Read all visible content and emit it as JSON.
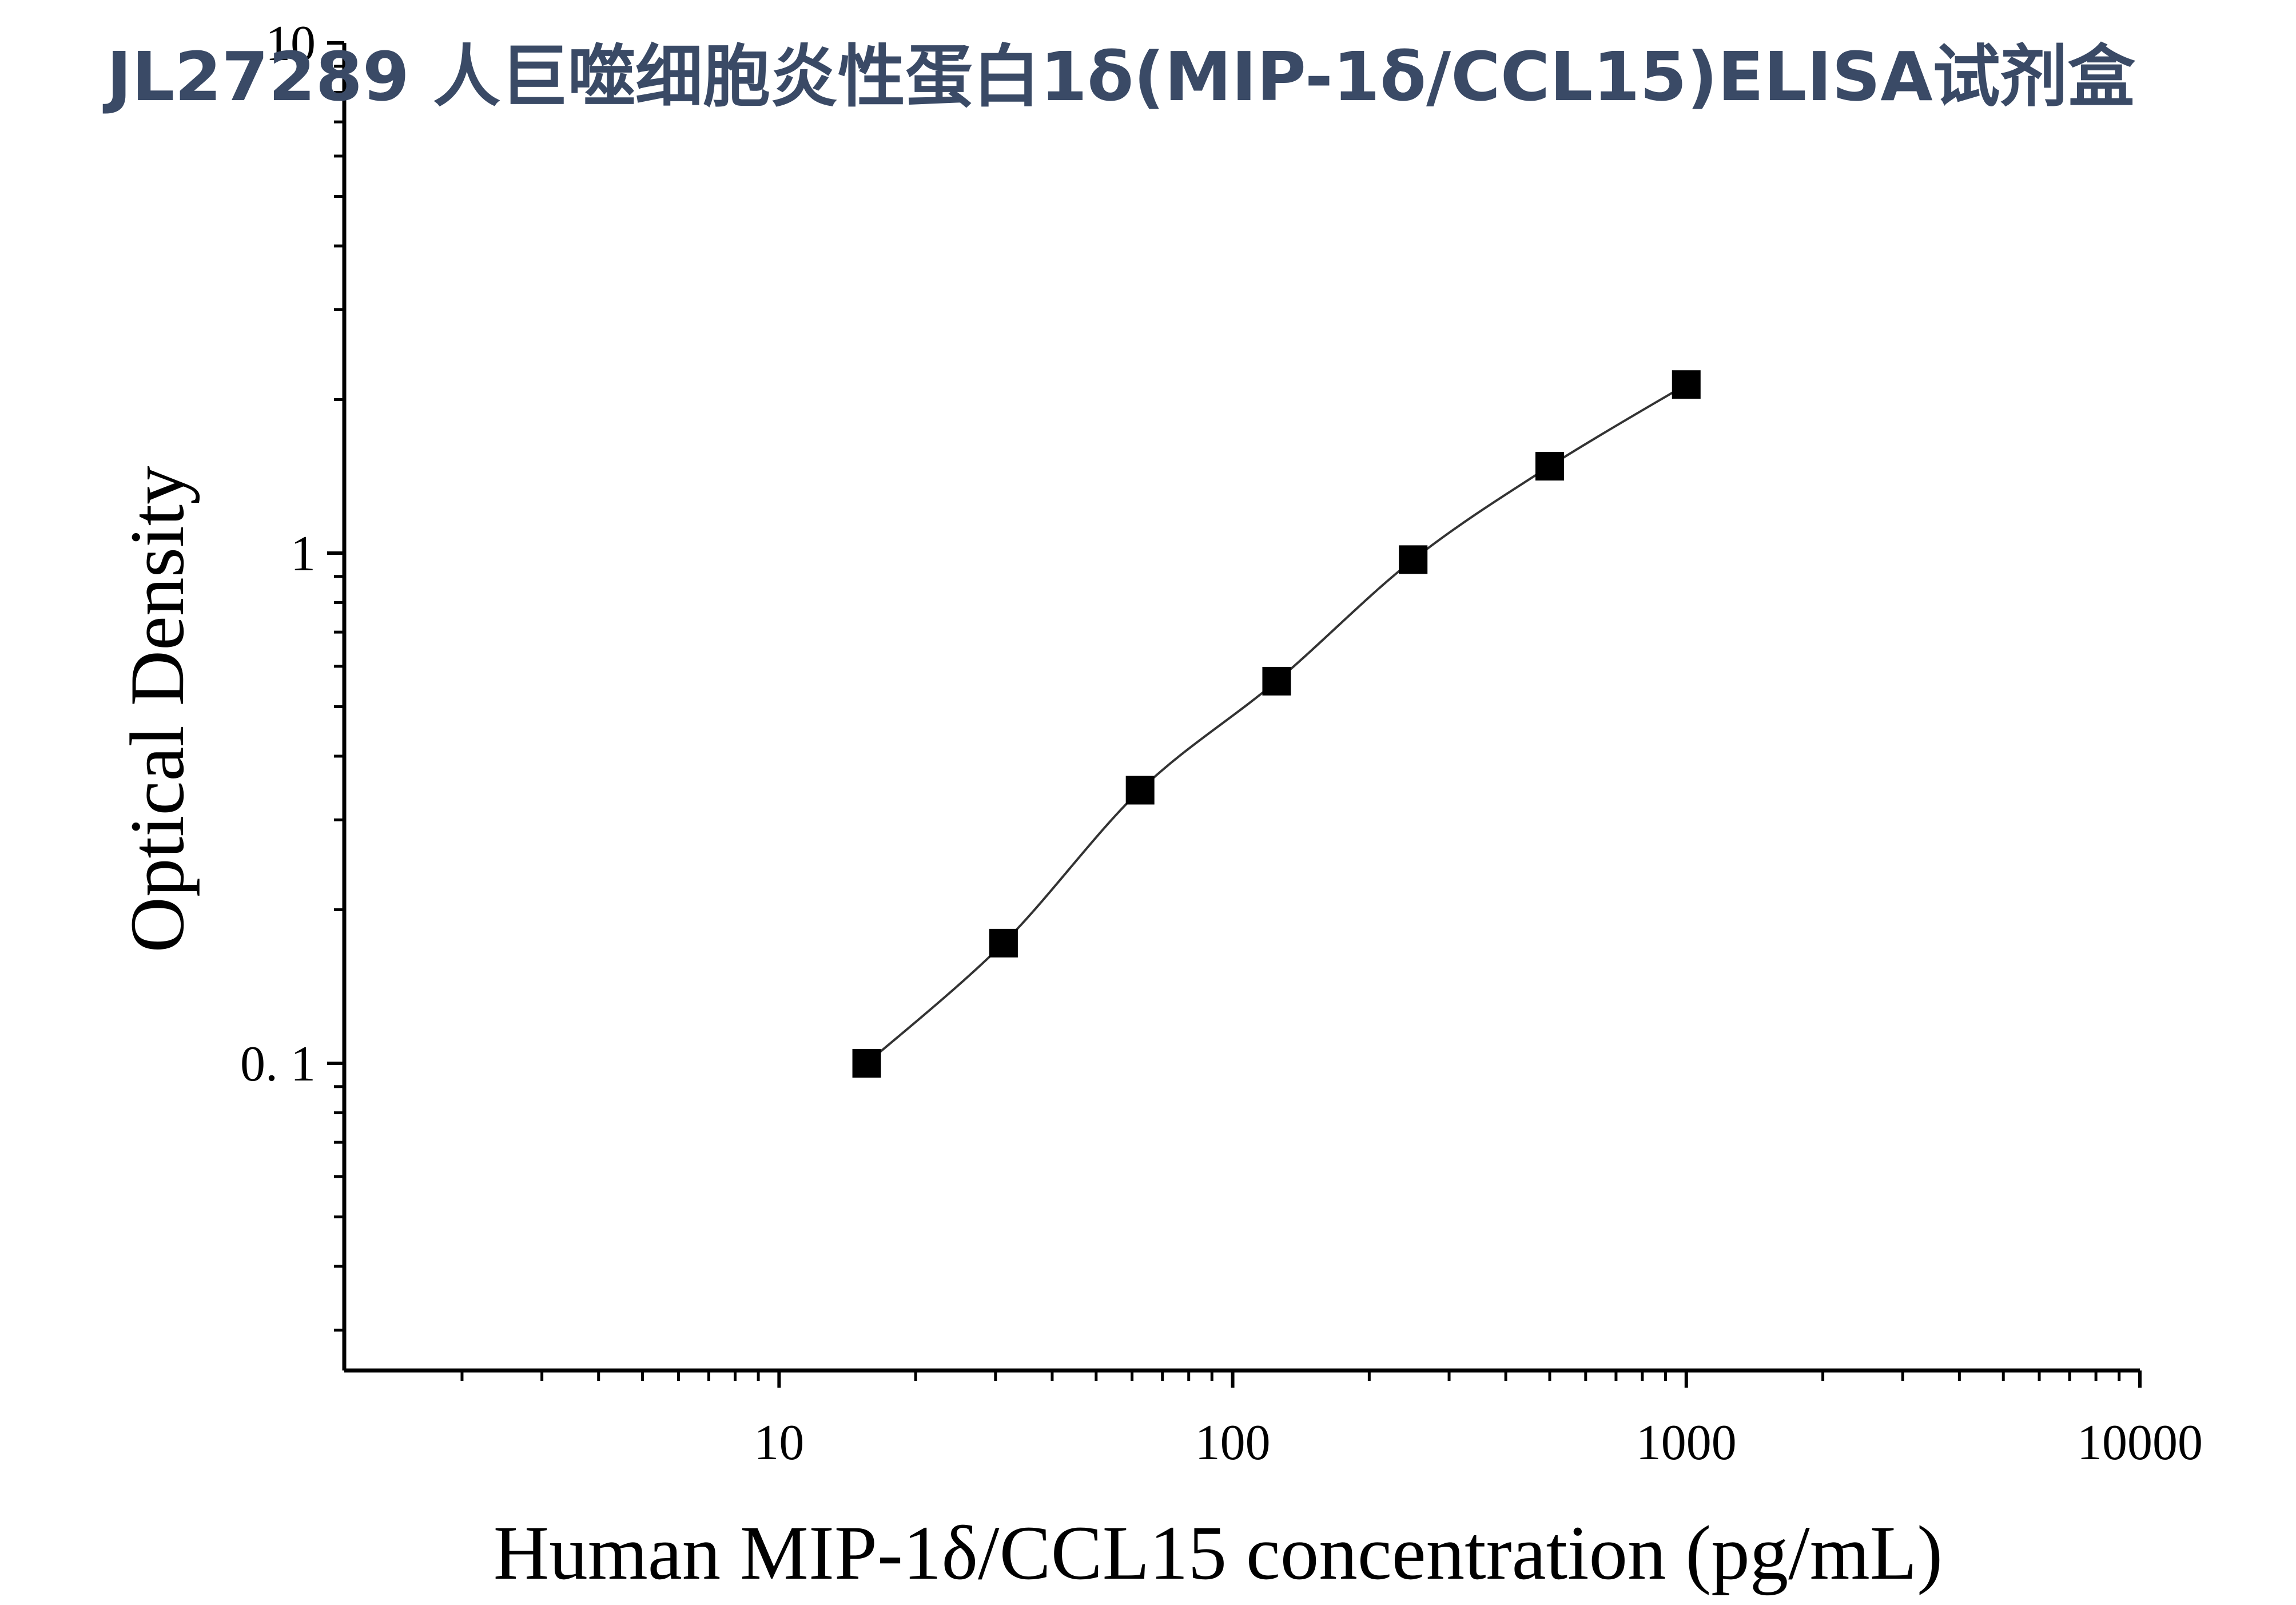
{
  "chart_data": {
    "type": "scatter",
    "title": "JL27289 人巨噬细胞炎性蛋白1δ(MIP-1δ/CCL15)ELISA试剂盒",
    "xlabel": "Human MIP-1δ/CCL15 concentration (pg/mL)",
    "ylabel": "Optical Density",
    "x_scale": "log",
    "y_scale": "log",
    "xlim": [
      1.1,
      10000
    ],
    "ylim": [
      0.025,
      10
    ],
    "x_ticks": [
      {
        "value": 10,
        "label": "10"
      },
      {
        "value": 100,
        "label": "100"
      },
      {
        "value": 1000,
        "label": "1000"
      },
      {
        "value": 10000,
        "label": "10000"
      }
    ],
    "y_ticks": [
      {
        "value": 0.1,
        "label": "0. 1"
      },
      {
        "value": 1,
        "label": "1"
      },
      {
        "value": 10,
        "label": "10"
      }
    ],
    "grid": false,
    "legend": "none",
    "series": [
      {
        "marker": "square",
        "fit_line": true,
        "x": [
          15.6,
          31.25,
          62.5,
          125,
          250,
          500,
          1000
        ],
        "y": [
          0.1,
          0.172,
          0.343,
          0.561,
          0.971,
          1.48,
          2.14
        ]
      }
    ]
  },
  "colors": {
    "title": "#3a4a66",
    "axis": "#000000",
    "marker": "#000000",
    "curve": "#333333"
  }
}
